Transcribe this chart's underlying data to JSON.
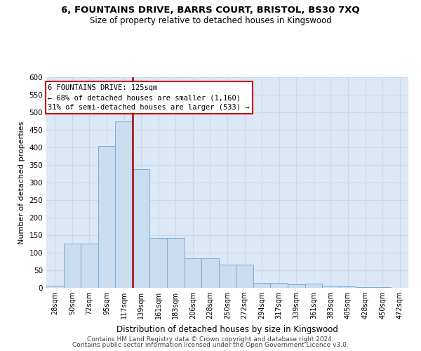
{
  "title": "6, FOUNTAINS DRIVE, BARRS COURT, BRISTOL, BS30 7XQ",
  "subtitle": "Size of property relative to detached houses in Kingswood",
  "xlabel": "Distribution of detached houses by size in Kingswood",
  "ylabel": "Number of detached properties",
  "categories": [
    "28sqm",
    "50sqm",
    "72sqm",
    "95sqm",
    "117sqm",
    "139sqm",
    "161sqm",
    "183sqm",
    "206sqm",
    "228sqm",
    "250sqm",
    "272sqm",
    "294sqm",
    "317sqm",
    "339sqm",
    "361sqm",
    "383sqm",
    "405sqm",
    "428sqm",
    "450sqm",
    "472sqm"
  ],
  "values": [
    7,
    127,
    127,
    405,
    475,
    338,
    143,
    143,
    85,
    85,
    67,
    67,
    15,
    15,
    11,
    13,
    6,
    5,
    3,
    2,
    1
  ],
  "bar_color": "#c9dcf0",
  "bar_edge_color": "#7badd4",
  "vline_x": 4.5,
  "vline_color": "#aa0000",
  "annotation_title": "6 FOUNTAINS DRIVE: 125sqm",
  "annotation_line1": "← 68% of detached houses are smaller (1,160)",
  "annotation_line2": "31% of semi-detached houses are larger (533) →",
  "annotation_box_facecolor": "#ffffff",
  "annotation_box_edgecolor": "#cc0000",
  "ylim": [
    0,
    600
  ],
  "yticks": [
    0,
    50,
    100,
    150,
    200,
    250,
    300,
    350,
    400,
    450,
    500,
    550,
    600
  ],
  "grid_color": "#c8d8ec",
  "background_color": "#dce8f5",
  "footer1": "Contains HM Land Registry data © Crown copyright and database right 2024.",
  "footer2": "Contains public sector information licensed under the Open Government Licence v3.0."
}
